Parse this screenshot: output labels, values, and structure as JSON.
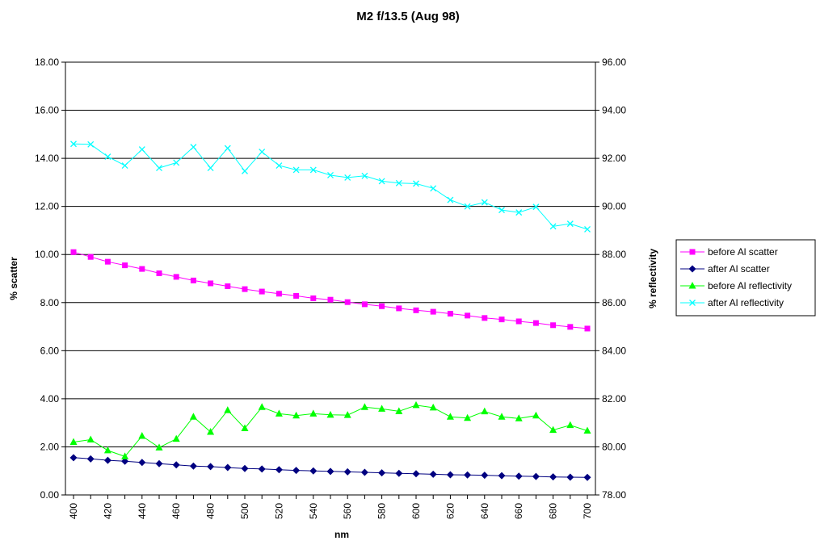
{
  "chart_data": {
    "type": "line",
    "title": "M2 f/13.5 (Aug 98)",
    "xlabel": "nm",
    "ylabel_left": "% scatter",
    "ylabel_right": "% reflectivity",
    "x": [
      400,
      410,
      420,
      430,
      440,
      450,
      460,
      470,
      480,
      490,
      500,
      510,
      520,
      530,
      540,
      550,
      560,
      570,
      580,
      590,
      600,
      610,
      620,
      630,
      640,
      650,
      660,
      670,
      680,
      690,
      700
    ],
    "x_ticks": [
      "400",
      "420",
      "440",
      "460",
      "480",
      "500",
      "520",
      "540",
      "560",
      "580",
      "600",
      "620",
      "640",
      "660",
      "680",
      "700"
    ],
    "y_left_ticks": [
      "0.00",
      "2.00",
      "4.00",
      "6.00",
      "8.00",
      "10.00",
      "12.00",
      "14.00",
      "16.00",
      "18.00"
    ],
    "y_right_ticks": [
      "78.00",
      "80.00",
      "82.00",
      "84.00",
      "86.00",
      "88.00",
      "90.00",
      "92.00",
      "94.00",
      "96.00"
    ],
    "ylim_left": [
      0,
      18
    ],
    "ylim_right": [
      78,
      96
    ],
    "grid": "horizontal",
    "legend_position": "right",
    "series": [
      {
        "name": "before Al scatter",
        "axis": "left",
        "color": "#ff00ff",
        "marker": "square",
        "values": [
          10.1,
          9.9,
          9.7,
          9.55,
          9.4,
          9.22,
          9.07,
          8.92,
          8.8,
          8.68,
          8.56,
          8.46,
          8.37,
          8.28,
          8.18,
          8.12,
          8.02,
          7.93,
          7.85,
          7.76,
          7.68,
          7.62,
          7.54,
          7.46,
          7.36,
          7.3,
          7.22,
          7.15,
          7.06,
          6.99,
          6.92
        ]
      },
      {
        "name": "after Al scatter",
        "axis": "left",
        "color": "#000080",
        "marker": "diamond",
        "values": [
          1.55,
          1.5,
          1.44,
          1.4,
          1.35,
          1.3,
          1.25,
          1.2,
          1.18,
          1.14,
          1.1,
          1.08,
          1.05,
          1.02,
          1.0,
          0.98,
          0.96,
          0.94,
          0.92,
          0.9,
          0.88,
          0.86,
          0.84,
          0.83,
          0.82,
          0.8,
          0.78,
          0.77,
          0.75,
          0.74,
          0.73
        ]
      },
      {
        "name": "before Al reflectivity",
        "axis": "right",
        "color": "#00ff00",
        "marker": "triangle",
        "values": [
          80.2,
          80.3,
          79.85,
          79.6,
          80.45,
          79.97,
          80.33,
          81.25,
          80.62,
          81.52,
          80.77,
          81.65,
          81.38,
          81.3,
          81.38,
          81.33,
          81.32,
          81.65,
          81.58,
          81.48,
          81.73,
          81.63,
          81.25,
          81.2,
          81.47,
          81.25,
          81.18,
          81.3,
          80.7,
          80.9,
          80.67
        ]
      },
      {
        "name": "after Al reflectivity",
        "axis": "right",
        "color": "#00ffff",
        "marker": "x",
        "values": [
          92.6,
          92.58,
          92.07,
          91.7,
          92.37,
          91.6,
          91.82,
          92.47,
          91.6,
          92.42,
          91.47,
          92.27,
          91.7,
          91.52,
          91.52,
          91.3,
          91.2,
          91.27,
          91.05,
          90.97,
          90.95,
          90.75,
          90.27,
          90.0,
          90.17,
          89.85,
          89.75,
          89.98,
          89.17,
          89.28,
          89.05
        ]
      }
    ]
  }
}
